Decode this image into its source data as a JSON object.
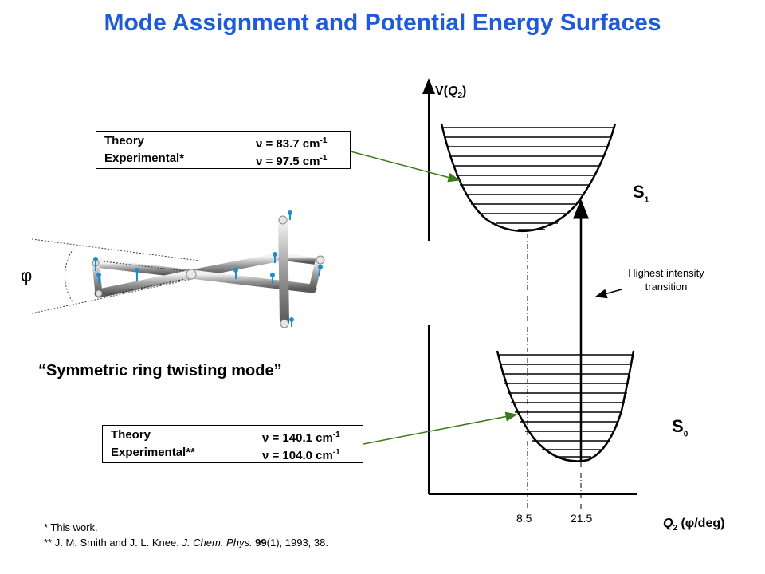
{
  "title": "Mode Assignment and Potential Energy Surfaces",
  "box_top": {
    "rows": [
      {
        "label": "Theory",
        "value": "ν = 83.7 cm",
        "exp": "-1"
      },
      {
        "label": "Experimental*",
        "value": "ν = 97.5 cm",
        "exp": "-1"
      }
    ]
  },
  "box_bottom": {
    "rows": [
      {
        "label": "Theory",
        "value": "ν = 140.1 cm",
        "exp": "-1"
      },
      {
        "label": "Experimental**",
        "value": "ν = 104.0 cm",
        "exp": "-1"
      }
    ]
  },
  "angle_symbol": "φ",
  "mode_caption": "“Symmetric ring twisting mode”",
  "y_axis_label": {
    "prefix": "V(",
    "var": "Q",
    "sub": "2",
    "suffix": ")"
  },
  "x_axis_label": {
    "var": "Q",
    "sub": "2",
    "suffix": " (φ/deg)"
  },
  "states": {
    "s1": {
      "letter": "S",
      "sub": "1"
    },
    "s0": {
      "letter": "S",
      "sub": "0"
    }
  },
  "transition_note": "Highest intensity transition",
  "ticks": [
    "8.5",
    "21.5"
  ],
  "footnotes": {
    "f1": "*   This work.",
    "f2_pre": "** J. M. Smith and J. L. Knee. ",
    "f2_journal": "J. Chem. Phys.",
    "f2_vol": " 99",
    "f2_post": "(1), 1993, 38."
  },
  "colors": {
    "title": "#1f5bd6",
    "arrow": "#3a7a1a"
  }
}
